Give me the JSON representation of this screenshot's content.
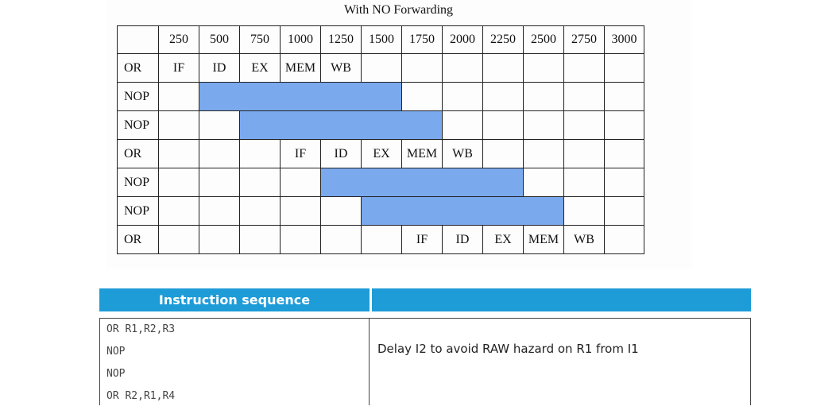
{
  "figure": {
    "title": "With NO Forwarding",
    "time_header": [
      "250",
      "500",
      "750",
      "1000",
      "1250",
      "1500",
      "1750",
      "2000",
      "2250",
      "2500",
      "2750",
      "3000"
    ],
    "rows": [
      {
        "label": "OR",
        "cells": [
          "IF",
          "ID",
          "EX",
          "MEM",
          "WB",
          "",
          "",
          "",
          "",
          "",
          "",
          ""
        ],
        "stall": [
          false,
          false,
          false,
          false,
          false,
          false,
          false,
          false,
          false,
          false,
          false,
          false
        ]
      },
      {
        "label": "NOP",
        "cells": [
          "",
          "",
          "",
          "",
          "",
          "",
          "",
          "",
          "",
          "",
          "",
          ""
        ],
        "stall": [
          false,
          true,
          true,
          true,
          true,
          true,
          false,
          false,
          false,
          false,
          false,
          false
        ]
      },
      {
        "label": "NOP",
        "cells": [
          "",
          "",
          "",
          "",
          "",
          "",
          "",
          "",
          "",
          "",
          "",
          ""
        ],
        "stall": [
          false,
          false,
          true,
          true,
          true,
          true,
          true,
          false,
          false,
          false,
          false,
          false
        ]
      },
      {
        "label": "OR",
        "cells": [
          "",
          "",
          "",
          "IF",
          "ID",
          "EX",
          "MEM",
          "WB",
          "",
          "",
          "",
          ""
        ],
        "stall": [
          false,
          false,
          false,
          false,
          false,
          false,
          false,
          false,
          false,
          false,
          false,
          false
        ]
      },
      {
        "label": "NOP",
        "cells": [
          "",
          "",
          "",
          "",
          "",
          "",
          "",
          "",
          "",
          "",
          "",
          ""
        ],
        "stall": [
          false,
          false,
          false,
          false,
          true,
          true,
          true,
          true,
          true,
          false,
          false,
          false
        ]
      },
      {
        "label": "NOP",
        "cells": [
          "",
          "",
          "",
          "",
          "",
          "",
          "",
          "",
          "",
          "",
          "",
          ""
        ],
        "stall": [
          false,
          false,
          false,
          false,
          false,
          true,
          true,
          true,
          true,
          true,
          false,
          false
        ]
      },
      {
        "label": "OR",
        "cells": [
          "",
          "",
          "",
          "",
          "",
          "",
          "IF",
          "ID",
          "EX",
          "MEM",
          "WB",
          ""
        ],
        "stall": [
          false,
          false,
          false,
          false,
          false,
          false,
          false,
          false,
          false,
          false,
          false,
          false
        ]
      }
    ],
    "stall_color": "#7aa9ee"
  },
  "sequence": {
    "header_left": "Instruction sequence",
    "header_right": "",
    "header_color": "#1e9cd8",
    "lines": [
      "OR R1,R2,R3",
      "NOP",
      "NOP",
      "OR R2,R1,R4"
    ],
    "note": "Delay I2 to avoid RAW hazard on R1 from I1"
  }
}
